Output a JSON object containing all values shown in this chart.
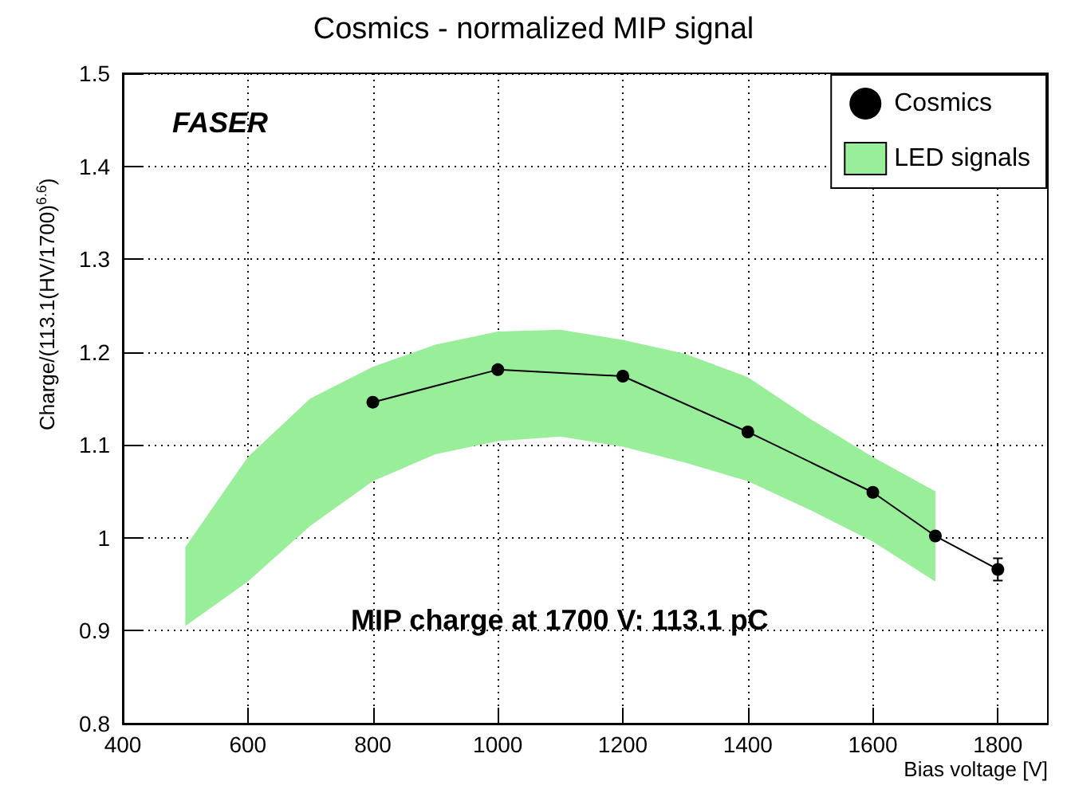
{
  "chart_data": {
    "type": "line",
    "title": "Cosmics - normalized MIP signal",
    "xlabel": "Bias voltage [V]",
    "ylabel": "Charge/(113.1(HV/1700)$^{6.6}$)",
    "annotations": [
      "FASER",
      "MIP charge at 1700 V: 113.1 pC"
    ],
    "series": [
      {
        "name": "Cosmics",
        "color": "#000000",
        "x": [
          800,
          1000,
          1200,
          1400,
          1600,
          1700,
          1800
        ],
        "values": [
          1.146,
          1.181,
          1.174,
          1.114,
          1.049,
          1.002,
          0.966
        ],
        "errors": [
          null,
          null,
          null,
          null,
          null,
          null,
          0.012
        ]
      },
      {
        "name": "LED signals",
        "type": "area",
        "color": "#99ee99",
        "x": [
          500,
          600,
          700,
          800,
          900,
          1000,
          1100,
          1200,
          1300,
          1400,
          1500,
          1600,
          1700
        ],
        "values": [
          null,
          null,
          null,
          null,
          null,
          null,
          null,
          null,
          null,
          null,
          null,
          null,
          null
        ],
        "lower": [
          0.905,
          0.953,
          1.013,
          1.061,
          1.09,
          1.104,
          1.109,
          1.098,
          1.081,
          1.061,
          1.03,
          0.996,
          0.953
        ],
        "upper": [
          0.99,
          1.087,
          1.15,
          1.184,
          1.208,
          1.222,
          1.224,
          1.213,
          1.198,
          1.173,
          1.128,
          1.087,
          1.05
        ]
      }
    ],
    "xlim": [
      400,
      1880
    ],
    "xticks": [
      400,
      600,
      800,
      1000,
      1200,
      1400,
      1600,
      1800
    ],
    "ylim": [
      0.8,
      1.5
    ],
    "yticks": [
      0.8,
      0.9,
      1,
      1.1,
      1.2,
      1.3,
      1.4,
      1.5
    ],
    "grid": true,
    "legend": "top right",
    "marker": "circle",
    "line_style": "solid"
  }
}
